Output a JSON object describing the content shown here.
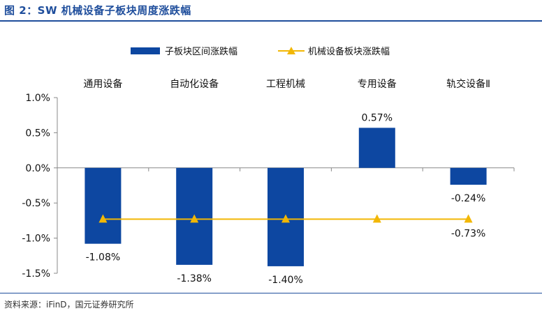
{
  "figure": {
    "title": "图 2：SW 机械设备子板块周度涨跌幅",
    "source": "资料来源：iFinD，国元证券研究所"
  },
  "colors": {
    "bar": "#0d47a1",
    "line": "#f2b705",
    "title": "#1f4e9c"
  },
  "chart_data": {
    "type": "bar",
    "categories": [
      "通用设备",
      "自动化设备",
      "工程机械",
      "专用设备",
      "轨交设备Ⅱ"
    ],
    "series": [
      {
        "name": "子板块区间涨跌幅",
        "type": "bar",
        "values": [
          -1.08,
          -1.38,
          -1.4,
          0.57,
          -0.24
        ]
      },
      {
        "name": "机械设备板块涨跌幅",
        "type": "line",
        "values": [
          -0.73,
          -0.73,
          -0.73,
          -0.73,
          -0.73
        ]
      }
    ],
    "bar_labels": [
      "-1.08%",
      "-1.38%",
      "-1.40%",
      "0.57%",
      "-0.24%"
    ],
    "line_label": "-0.73%",
    "yticks": [
      "1.0%",
      "0.5%",
      "0.0%",
      "-0.5%",
      "-1.0%",
      "-1.5%"
    ],
    "ytick_values": [
      1.0,
      0.5,
      0.0,
      -0.5,
      -1.0,
      -1.5
    ],
    "ylim": [
      -1.5,
      1.0
    ],
    "grid": false,
    "legend_position": "top-center"
  }
}
